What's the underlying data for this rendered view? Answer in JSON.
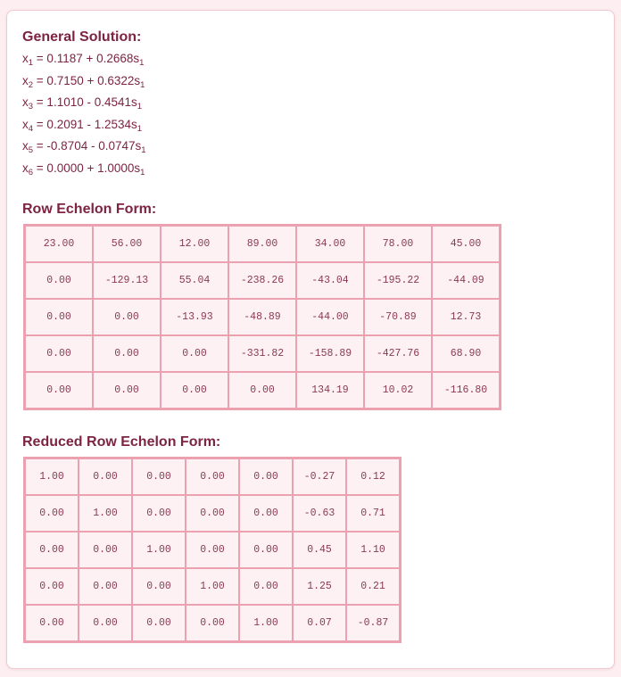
{
  "general_solution": {
    "title": "General Solution:",
    "equations": [
      {
        "var": "x",
        "var_sub": "1",
        "expr": " = 0.1187 + 0.2668s",
        "param_sub": "1"
      },
      {
        "var": "x",
        "var_sub": "2",
        "expr": " = 0.7150 + 0.6322s",
        "param_sub": "1"
      },
      {
        "var": "x",
        "var_sub": "3",
        "expr": " = 1.1010 - 0.4541s",
        "param_sub": "1"
      },
      {
        "var": "x",
        "var_sub": "4",
        "expr": " = 0.2091 - 1.2534s",
        "param_sub": "1"
      },
      {
        "var": "x",
        "var_sub": "5",
        "expr": " = -0.8704 - 0.0747s",
        "param_sub": "1"
      },
      {
        "var": "x",
        "var_sub": "6",
        "expr": " = 0.0000 + 1.0000s",
        "param_sub": "1"
      }
    ]
  },
  "row_echelon": {
    "title": "Row Echelon Form:",
    "rows": [
      [
        "23.00",
        "56.00",
        "12.00",
        "89.00",
        "34.00",
        "78.00",
        "45.00"
      ],
      [
        "0.00",
        "-129.13",
        "55.04",
        "-238.26",
        "-43.04",
        "-195.22",
        "-44.09"
      ],
      [
        "0.00",
        "0.00",
        "-13.93",
        "-48.89",
        "-44.00",
        "-70.89",
        "12.73"
      ],
      [
        "0.00",
        "0.00",
        "0.00",
        "-331.82",
        "-158.89",
        "-427.76",
        "68.90"
      ],
      [
        "0.00",
        "0.00",
        "0.00",
        "0.00",
        "134.19",
        "10.02",
        "-116.80"
      ]
    ]
  },
  "reduced_row_echelon": {
    "title": "Reduced Row Echelon Form:",
    "rows": [
      [
        "1.00",
        "0.00",
        "0.00",
        "0.00",
        "0.00",
        "-0.27",
        "0.12"
      ],
      [
        "0.00",
        "1.00",
        "0.00",
        "0.00",
        "0.00",
        "-0.63",
        "0.71"
      ],
      [
        "0.00",
        "0.00",
        "1.00",
        "0.00",
        "0.00",
        "0.45",
        "1.10"
      ],
      [
        "0.00",
        "0.00",
        "0.00",
        "1.00",
        "0.00",
        "1.25",
        "0.21"
      ],
      [
        "0.00",
        "0.00",
        "0.00",
        "0.00",
        "1.00",
        "0.07",
        "-0.87"
      ]
    ]
  }
}
